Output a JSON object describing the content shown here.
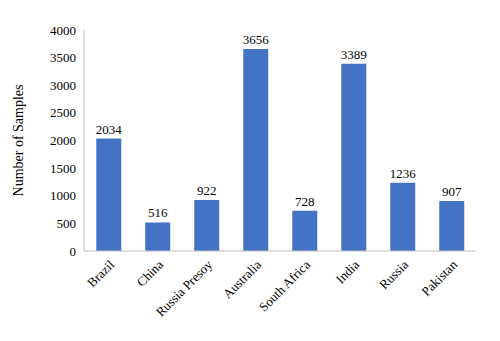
{
  "chart_data": {
    "type": "bar",
    "ylabel": "Number of Samples",
    "categories": [
      "Brazil",
      "China",
      "Russia Presoy",
      "Australia",
      "South Africa",
      "India",
      "Russia",
      "Pakistan"
    ],
    "values": [
      2034,
      516,
      922,
      3656,
      728,
      3389,
      1236,
      907
    ],
    "color": "#4472c4",
    "ylim": [
      0,
      4000
    ],
    "yticks": [
      0,
      500,
      1000,
      1500,
      2000,
      2500,
      3000,
      3500,
      4000
    ],
    "grid": false,
    "data_labels": true
  }
}
